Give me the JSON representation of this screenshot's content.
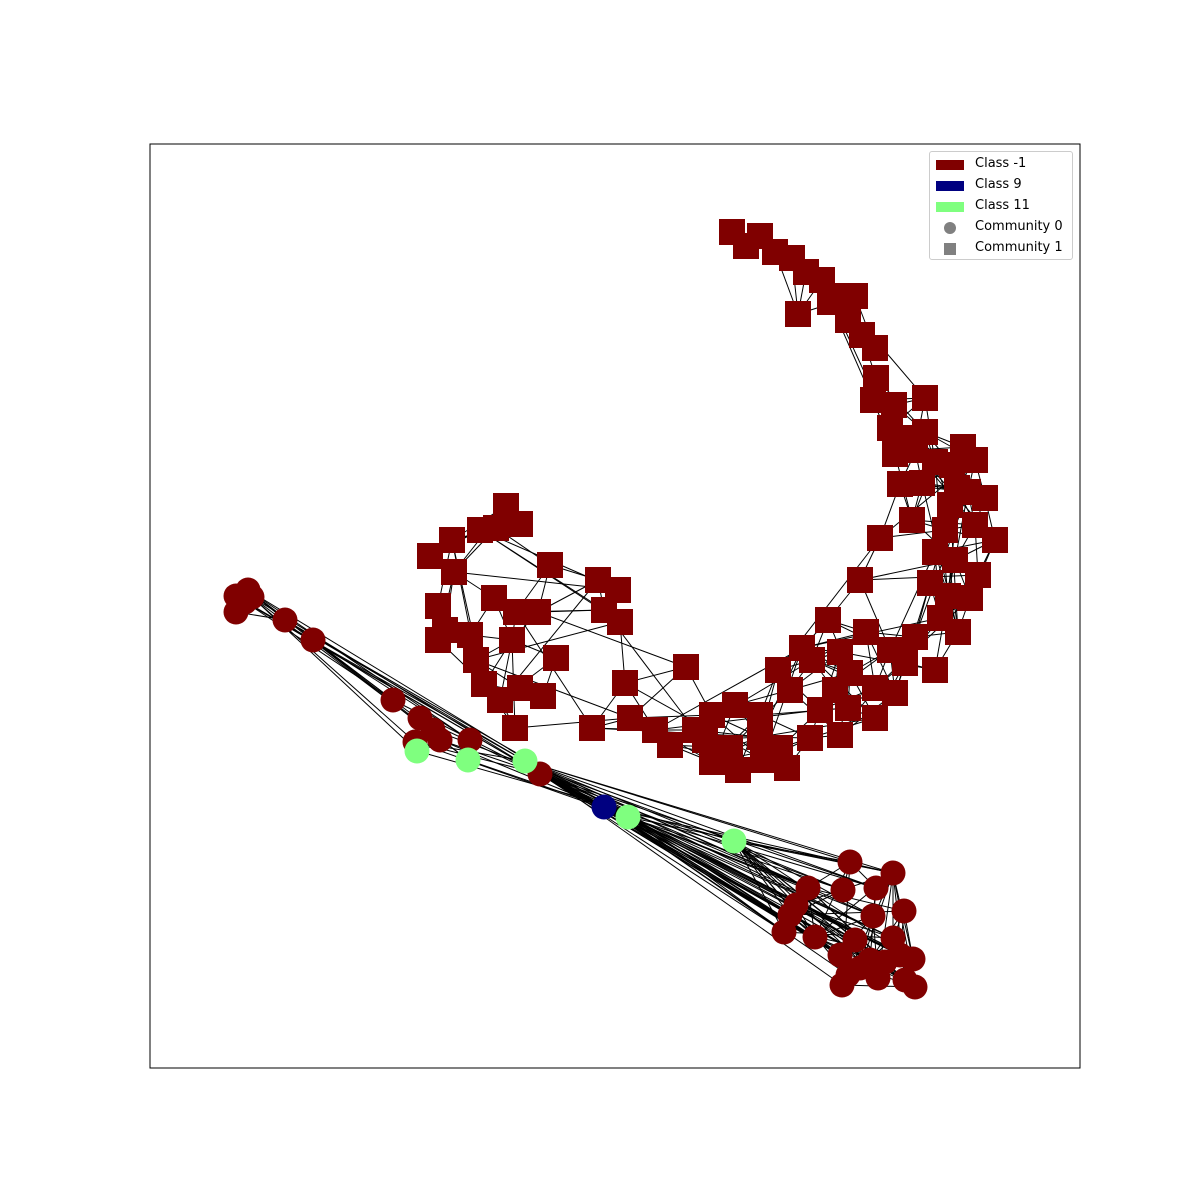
{
  "graph": {
    "colors": {
      "class_-1": "#800000",
      "class_9": "#000080",
      "class_11": "#7fff7f",
      "edge": "#000000",
      "frame": "#000000",
      "legend_marker": "#808080"
    },
    "node_shapes": {
      "community_0": "circle",
      "community_1": "square"
    }
  },
  "legend": {
    "entries": [
      {
        "label": "Class -1",
        "color": "#800000",
        "kind": "patch"
      },
      {
        "label": "Class 9",
        "color": "#000080",
        "kind": "patch"
      },
      {
        "label": "Class 11",
        "color": "#7fff7f",
        "kind": "patch"
      },
      {
        "label": "Community 0",
        "kind": "circle-marker"
      },
      {
        "label": "Community 1",
        "kind": "square-marker"
      }
    ]
  }
}
